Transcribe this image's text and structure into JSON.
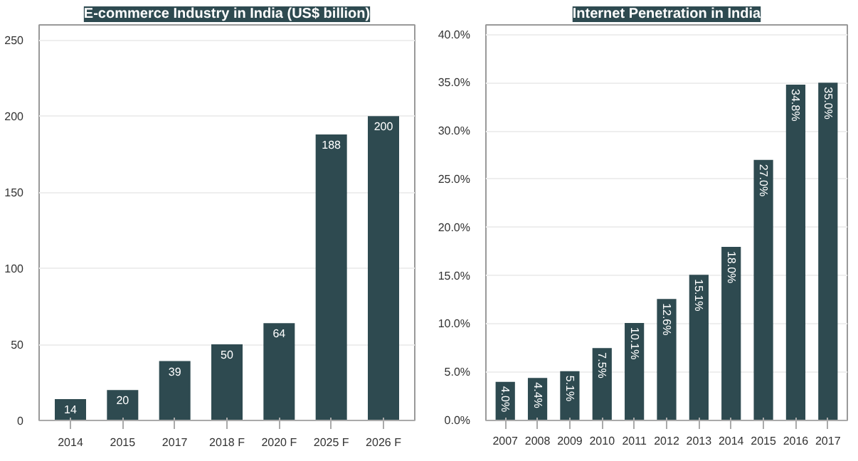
{
  "chart_data": [
    {
      "type": "bar",
      "title": "E-commerce Industry in India (US$ billion)",
      "categories": [
        "2014",
        "2015",
        "2017",
        "2018 F",
        "2020 F",
        "2025 F",
        "2026 F"
      ],
      "values": [
        14,
        20,
        39,
        50,
        64,
        188,
        200
      ],
      "color": "#2e4a50",
      "ylim": [
        0,
        260
      ],
      "yticks": [
        0,
        50,
        100,
        150,
        200,
        250
      ],
      "grid": "y",
      "data_labels": true
    },
    {
      "type": "bar",
      "title": "Internet Penetration in India",
      "categories": [
        "2007",
        "2008",
        "2009",
        "2010",
        "2011",
        "2012",
        "2013",
        "2014",
        "2015",
        "2016",
        "2017"
      ],
      "values": [
        4.0,
        4.4,
        5.1,
        7.5,
        10.1,
        12.6,
        15.1,
        18.0,
        27.0,
        34.8,
        35.0
      ],
      "value_labels": [
        "4.0%",
        "4.4%",
        "5.1%",
        "7.5%",
        "10.1%",
        "12.6%",
        "15.1%",
        "18.0%",
        "27.0%",
        "34.8%",
        "35.0%"
      ],
      "color": "#2e4a50",
      "ylim": [
        0,
        41
      ],
      "yticks": [
        {
          "value": 0,
          "label": "0.0%"
        },
        {
          "value": 5,
          "label": "5.0%"
        },
        {
          "value": 10,
          "label": "10.0%"
        },
        {
          "value": 15,
          "label": "15.0%"
        },
        {
          "value": 20,
          "label": "20.0%"
        },
        {
          "value": 25,
          "label": "25.0%"
        },
        {
          "value": 30,
          "label": "30.0%"
        },
        {
          "value": 35,
          "label": "35.0%"
        },
        {
          "value": 40,
          "label": "40.0%"
        }
      ],
      "grid": "y"
    }
  ]
}
